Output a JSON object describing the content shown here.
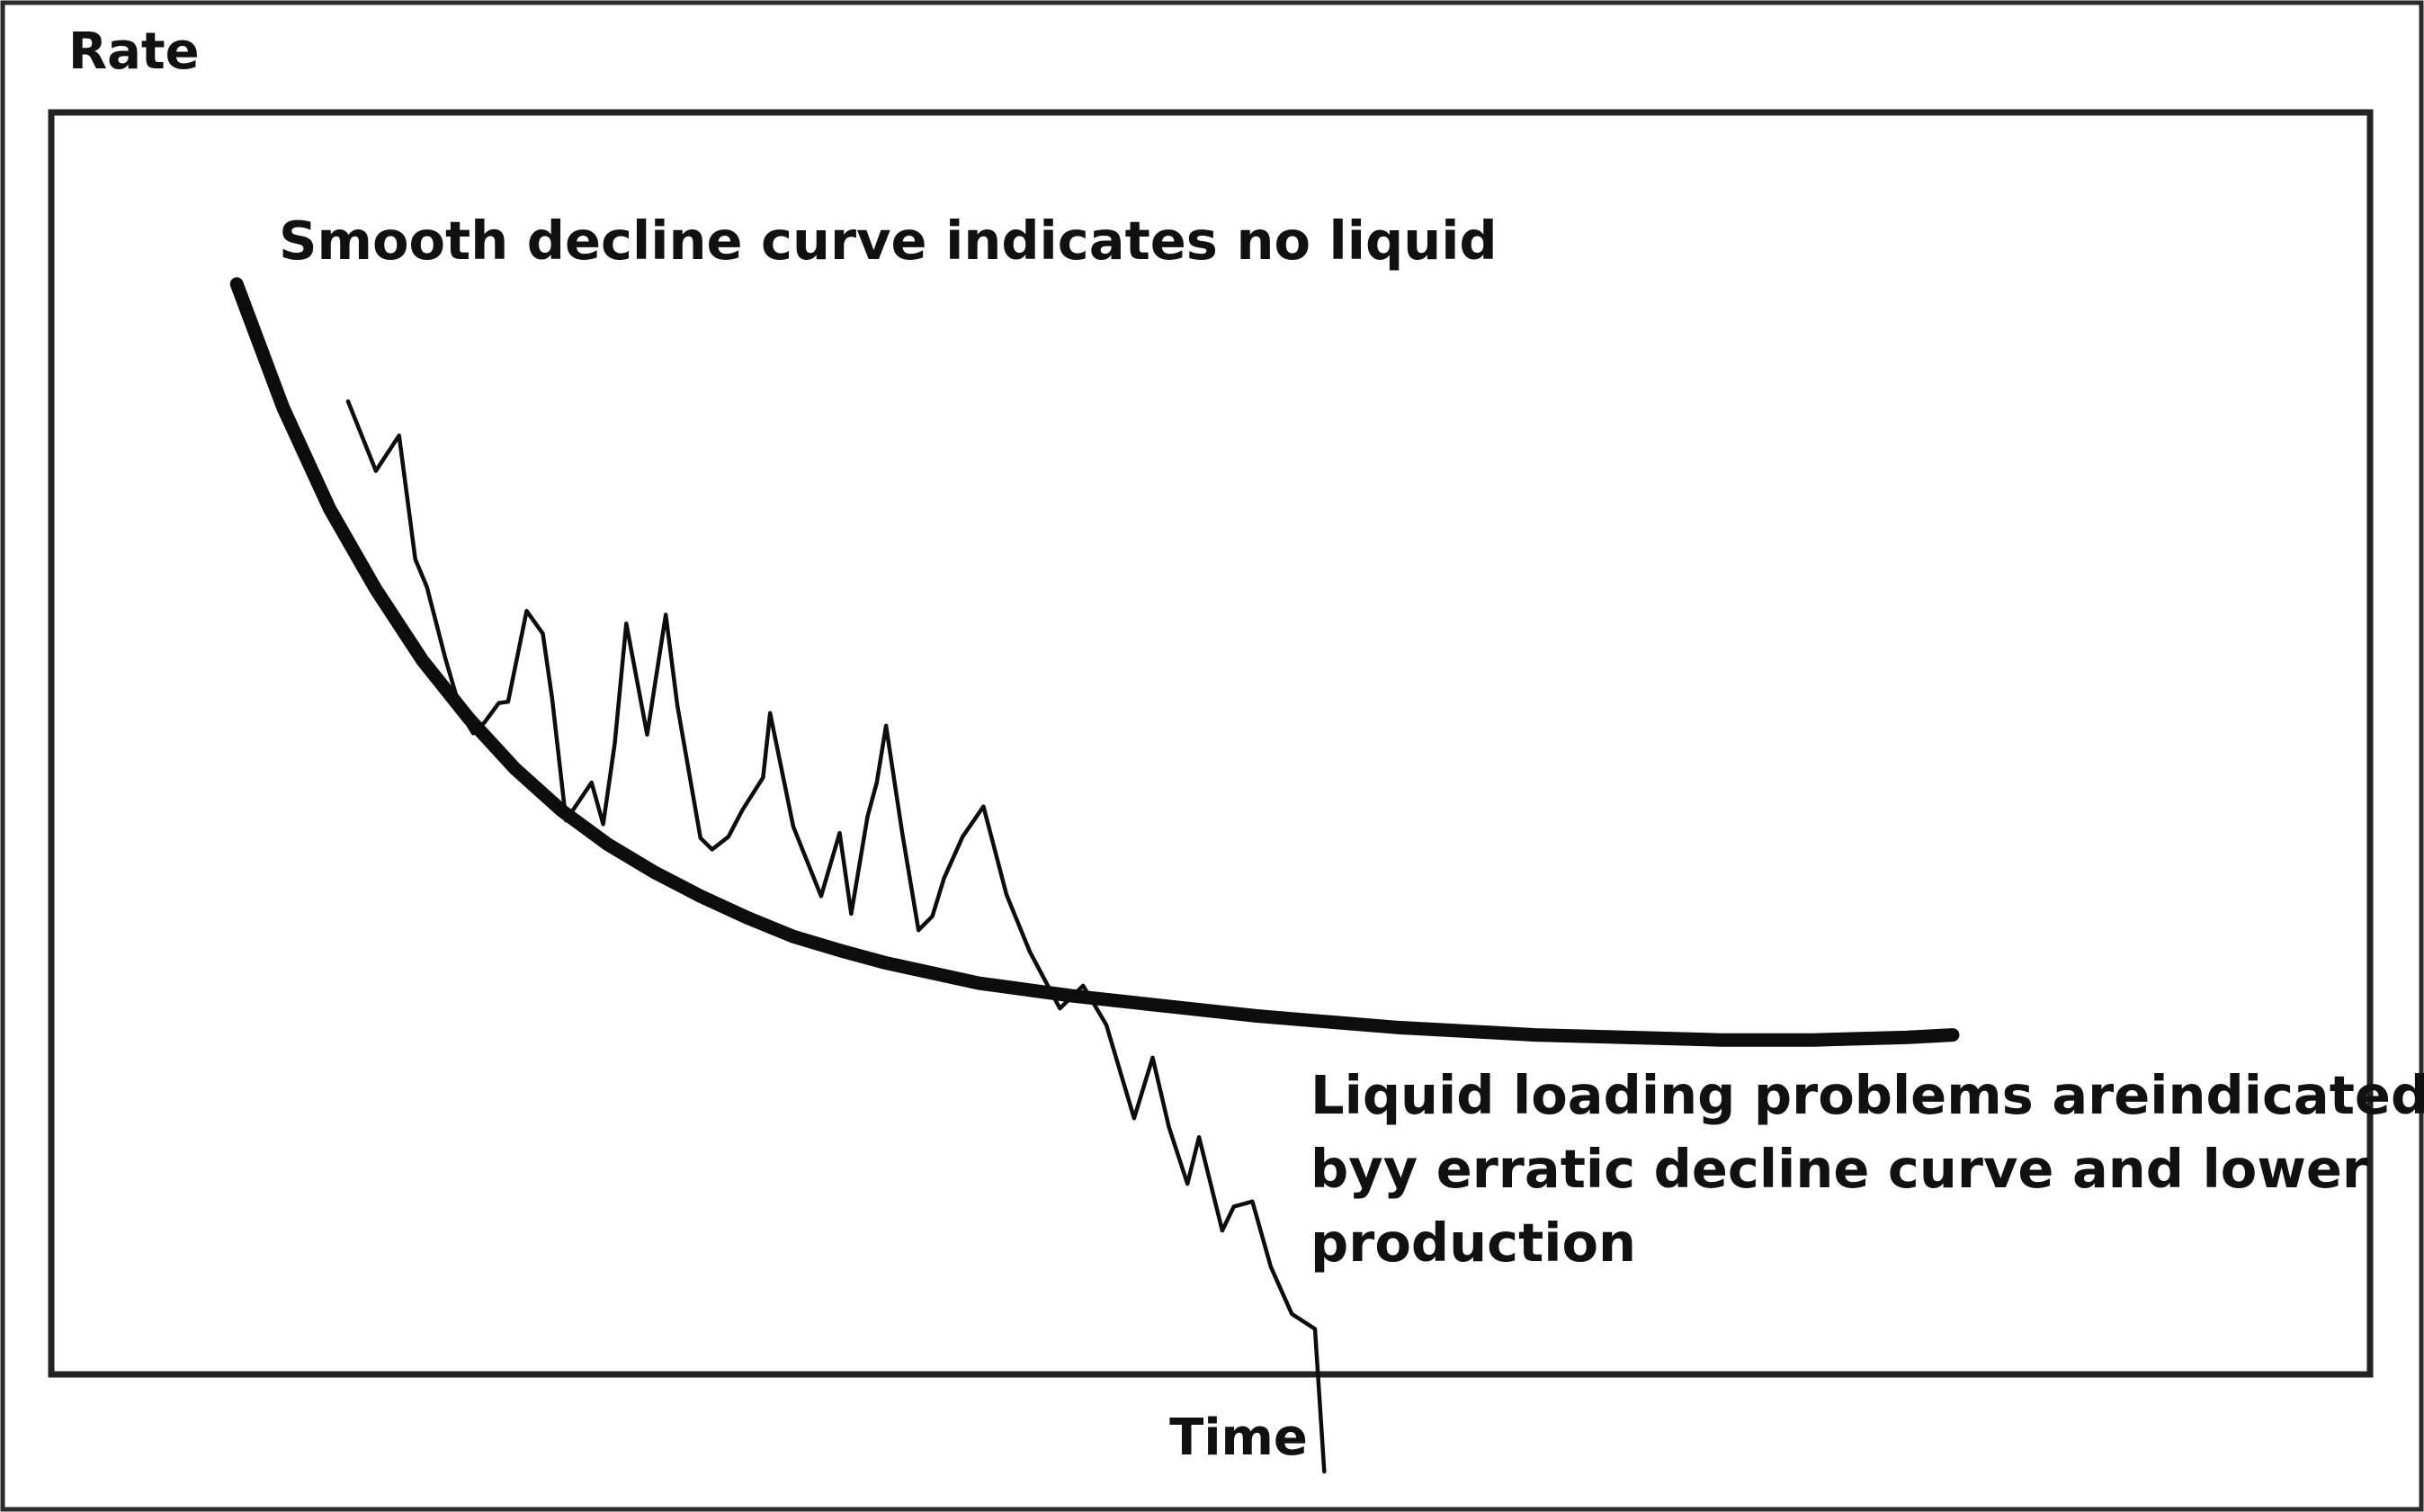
{
  "chart_data": {
    "type": "line",
    "ylabel": "Rate",
    "xlabel": "Time",
    "xlim": [
      0,
      100
    ],
    "ylim": [
      0,
      100
    ],
    "axis_ticks": false,
    "grid": false,
    "legend": "none",
    "series": [
      {
        "style": "thick-smooth",
        "x": [
          8,
          10,
          12,
          14,
          16,
          18,
          20,
          22,
          24,
          26,
          28,
          30,
          32,
          34,
          36,
          38,
          40,
          42,
          44,
          46,
          48,
          50,
          52,
          54,
          56,
          58,
          60,
          62,
          64,
          66,
          68,
          70,
          72,
          74,
          76,
          78,
          80,
          82
        ],
        "y": [
          86.4,
          76.6,
          68.6,
          62.2,
          56.6,
          52.0,
          48.0,
          44.7,
          42.0,
          39.8,
          37.9,
          36.2,
          34.7,
          33.6,
          32.6,
          31.8,
          31.0,
          30.5,
          30.0,
          29.6,
          29.2,
          28.8,
          28.4,
          28.1,
          27.8,
          27.5,
          27.3,
          27.1,
          26.9,
          26.8,
          26.7,
          26.6,
          26.5,
          26.5,
          26.5,
          26.6,
          26.7,
          26.9
        ]
      },
      {
        "style": "thin-erratic",
        "x": [
          12.8,
          14.0,
          15.0,
          15.7,
          16.2,
          17.0,
          17.7,
          18.2,
          18.7,
          19.3,
          19.7,
          20.5,
          21.2,
          21.6,
          22.2,
          23.3,
          23.8,
          24.3,
          24.8,
          25.7,
          26.5,
          27.0,
          28.0,
          28.5,
          29.2,
          29.8,
          30.7,
          31.0,
          32.0,
          33.2,
          34.0,
          34.5,
          35.2,
          35.6,
          36.0,
          36.7,
          37.4,
          38.0,
          38.5,
          39.3,
          40.2,
          41.2,
          42.2,
          43.5,
          44.5,
          45.5,
          46.7,
          47.5,
          48.2,
          49.0,
          49.5,
          50.5,
          51.0,
          51.8,
          52.6,
          53.5,
          54.5,
          54.9
        ],
        "y": [
          77.1,
          71.6,
          74.4,
          64.6,
          62.4,
          56.7,
          52.3,
          50.8,
          51.7,
          53.2,
          53.3,
          60.5,
          58.7,
          53.6,
          43.9,
          46.9,
          43.6,
          50.0,
          59.5,
          50.7,
          60.2,
          53.0,
          42.5,
          41.6,
          42.6,
          44.7,
          47.3,
          52.4,
          43.4,
          37.9,
          42.9,
          36.5,
          44.2,
          46.9,
          51.4,
          42.9,
          35.2,
          36.3,
          39.3,
          42.6,
          45.0,
          38.0,
          33.5,
          29.0,
          30.8,
          27.7,
          20.3,
          25.1,
          19.6,
          15.1,
          18.8,
          11.4,
          13.3,
          13.7,
          8.5,
          4.8,
          3.6,
          -7.7
        ]
      }
    ],
    "annotations": [
      {
        "lines": [
          "Smooth decline curve indicates no liquid"
        ]
      },
      {
        "lines": [
          "Liquid loading problems areindicated",
          "byy erratic decline curve and lower",
          "production"
        ]
      }
    ]
  },
  "colors": {
    "curve": "#0d0d0d",
    "frame": "#222222",
    "background": "#ffffff"
  }
}
